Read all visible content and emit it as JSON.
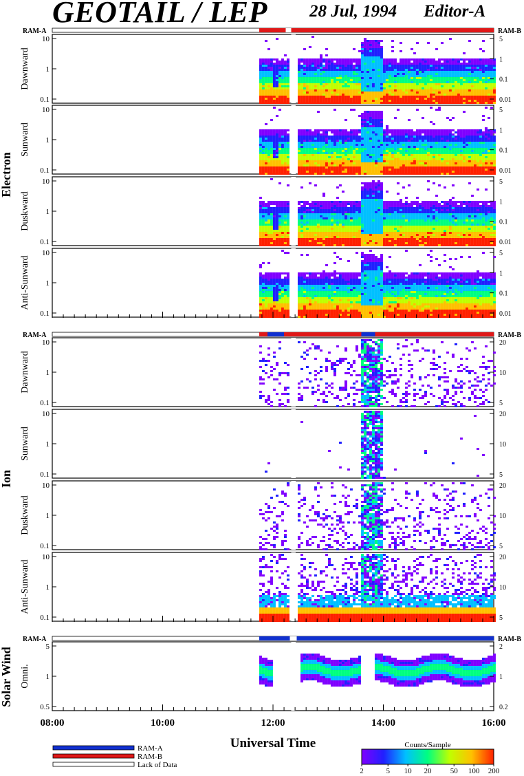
{
  "header": {
    "title": "GEOTAIL / LEP",
    "date": "28 Jul, 1994",
    "editor": "Editor-A"
  },
  "groups": [
    {
      "label": "Electron",
      "ram_left": "RAM-A",
      "ram_right": "RAM-B",
      "panels": [
        {
          "label": "Dawnward",
          "left_ticks": [
            "10",
            "1",
            "0.1"
          ],
          "right_ticks": [
            "5",
            "1",
            "0.1",
            "0.01"
          ]
        },
        {
          "label": "Sunward",
          "left_ticks": [
            "10",
            "1",
            "0.1"
          ],
          "right_ticks": [
            "5",
            "1",
            "0.1",
            "0.01"
          ]
        },
        {
          "label": "Duskward",
          "left_ticks": [
            "10",
            "1",
            "0.1"
          ],
          "right_ticks": [
            "5",
            "1",
            "0.1",
            "0.01"
          ]
        },
        {
          "label": "Anti-Sunward",
          "left_ticks": [
            "10",
            "1",
            "0.1"
          ],
          "right_ticks": [
            "5",
            "1",
            "0.1",
            "0.01"
          ]
        }
      ]
    },
    {
      "label": "Ion",
      "ram_left": "RAM-A",
      "ram_right": "RAM-B",
      "panels": [
        {
          "label": "Dawnward",
          "left_ticks": [
            "10",
            "1",
            "0.1"
          ],
          "right_ticks": [
            "20",
            "10",
            "5"
          ]
        },
        {
          "label": "Sunward",
          "left_ticks": [
            "10",
            "1",
            "0.1"
          ],
          "right_ticks": [
            "20",
            "10",
            "5"
          ]
        },
        {
          "label": "Duskward",
          "left_ticks": [
            "10",
            "1",
            "0.1"
          ],
          "right_ticks": [
            "20",
            "10",
            "5"
          ]
        },
        {
          "label": "Anti-Sunward",
          "left_ticks": [
            "10",
            "1",
            "0.1"
          ],
          "right_ticks": [
            "20",
            "10",
            "5"
          ]
        }
      ]
    },
    {
      "label": "Solar Wind",
      "ram_left": "RAM-A",
      "ram_right": "RAM-B",
      "panels": [
        {
          "label": "Omni.",
          "left_ticks": [
            "5",
            "1",
            "0.5"
          ],
          "right_ticks": [
            "2",
            "1",
            "0.2"
          ]
        }
      ]
    }
  ],
  "x_axis": {
    "label": "Universal Time",
    "ticks": [
      "08:00",
      "10:00",
      "12:00",
      "14:00",
      "16:00"
    ]
  },
  "legend": {
    "items": [
      {
        "label": "RAM-A",
        "color": "#1030d0"
      },
      {
        "label": "RAM-B",
        "color": "#e01818"
      },
      {
        "label": "Lack of Data",
        "color": "#ffffff"
      }
    ]
  },
  "colorbar": {
    "title": "Counts/Sample",
    "ticks": [
      "2",
      "5",
      "10",
      "20",
      "50",
      "100",
      "200"
    ],
    "colors": [
      "#8000ff",
      "#2020ff",
      "#00c0ff",
      "#00ff80",
      "#c0ff00",
      "#ffc000",
      "#ff2000"
    ]
  },
  "chart_data": {
    "type": "heatmap",
    "title": "GEOTAIL / LEP",
    "xlabel": "Universal Time",
    "x_range": [
      "08:00",
      "16:00"
    ],
    "data_start": "11:45",
    "data_gap": [
      "12:20",
      "12:25"
    ],
    "mode_intervals": [
      {
        "mode": "RAM-B",
        "from": "11:45",
        "to": "16:00",
        "group": "Electron"
      },
      {
        "mode": "RAM-A",
        "from": "11:45",
        "to": "16:00",
        "group": "Solar Wind"
      }
    ],
    "colorbar_range": [
      2,
      200
    ],
    "log_axes": true
  }
}
